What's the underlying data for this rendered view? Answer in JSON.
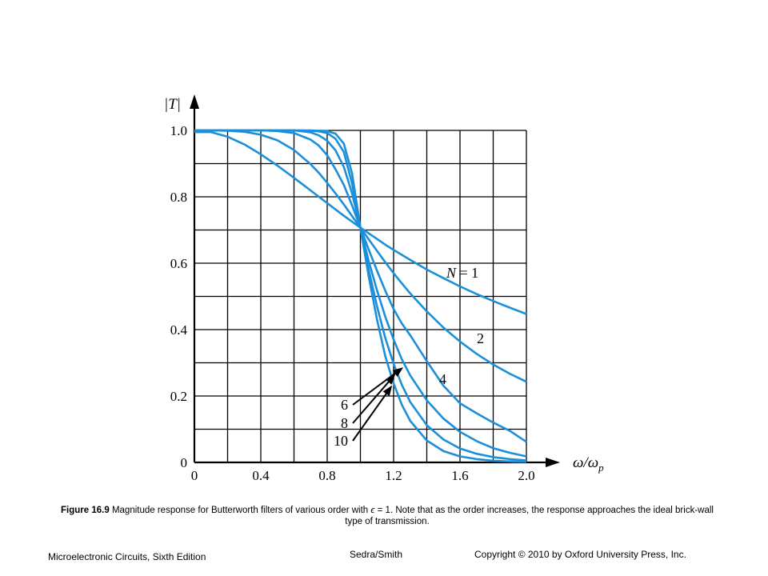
{
  "chart_data": {
    "type": "line",
    "x": [
      0,
      0.1,
      0.2,
      0.3,
      0.4,
      0.5,
      0.6,
      0.7,
      0.75,
      0.8,
      0.85,
      0.9,
      0.95,
      1.0,
      1.05,
      1.1,
      1.15,
      1.2,
      1.25,
      1.3,
      1.4,
      1.5,
      1.6,
      1.7,
      1.8,
      1.9,
      2.0
    ],
    "series": [
      {
        "name": "1",
        "values": [
          0.995,
          0.995,
          0.981,
          0.958,
          0.928,
          0.894,
          0.857,
          0.819,
          0.8,
          0.781,
          0.762,
          0.743,
          0.725,
          0.707,
          0.69,
          0.673,
          0.656,
          0.64,
          0.625,
          0.61,
          0.581,
          0.555,
          0.53,
          0.507,
          0.486,
          0.466,
          0.447
        ]
      },
      {
        "name": "2",
        "values": [
          1.0,
          1.0,
          0.999,
          0.996,
          0.987,
          0.97,
          0.941,
          0.898,
          0.872,
          0.842,
          0.81,
          0.777,
          0.742,
          0.707,
          0.672,
          0.637,
          0.603,
          0.57,
          0.539,
          0.509,
          0.455,
          0.406,
          0.364,
          0.327,
          0.295,
          0.267,
          0.243
        ]
      },
      {
        "name": "4",
        "values": [
          1.0,
          1.0,
          1.0,
          1.0,
          1.0,
          0.998,
          0.992,
          0.972,
          0.954,
          0.925,
          0.883,
          0.836,
          0.774,
          0.707,
          0.641,
          0.577,
          0.517,
          0.462,
          0.418,
          0.383,
          0.305,
          0.231,
          0.178,
          0.148,
          0.12,
          0.095,
          0.062
        ]
      },
      {
        "name": "6",
        "values": [
          1.0,
          1.0,
          1.0,
          1.0,
          1.0,
          1.0,
          1.0,
          0.994,
          0.985,
          0.969,
          0.94,
          0.89,
          0.81,
          0.707,
          0.606,
          0.518,
          0.439,
          0.37,
          0.31,
          0.262,
          0.187,
          0.132,
          0.092,
          0.064,
          0.043,
          0.029,
          0.018
        ]
      },
      {
        "name": "8",
        "values": [
          1.0,
          1.0,
          1.0,
          1.0,
          1.0,
          1.0,
          1.0,
          0.999,
          0.997,
          0.992,
          0.975,
          0.935,
          0.84,
          0.707,
          0.58,
          0.47,
          0.375,
          0.297,
          0.233,
          0.182,
          0.112,
          0.069,
          0.042,
          0.026,
          0.016,
          0.01,
          0.006
        ]
      },
      {
        "name": "10",
        "values": [
          1.0,
          1.0,
          1.0,
          1.0,
          1.0,
          1.0,
          1.0,
          1.0,
          0.999,
          0.998,
          0.99,
          0.96,
          0.87,
          0.707,
          0.56,
          0.43,
          0.32,
          0.238,
          0.173,
          0.125,
          0.066,
          0.034,
          0.018,
          0.01,
          0.005,
          0.003,
          0.002
        ]
      }
    ],
    "xlabel": "ω/ωp",
    "ylabel": "|T|",
    "xlim": [
      0,
      2.0
    ],
    "ylim": [
      0,
      1.0
    ],
    "xticks": [
      "0",
      "0.4",
      "0.8",
      "1.2",
      "1.6",
      "2.0"
    ],
    "xtick_values": [
      0,
      0.4,
      0.8,
      1.2,
      1.6,
      2.0
    ],
    "yticks": [
      "0",
      "0.2",
      "0.4",
      "0.6",
      "0.8",
      "1.0"
    ],
    "ytick_values": [
      0,
      0.2,
      0.4,
      0.6,
      0.8,
      1.0
    ],
    "grid": true,
    "grid_step_x": 0.2,
    "grid_step_y": 0.1,
    "curve_labels": [
      {
        "text": "N = 1",
        "series": "1"
      },
      {
        "text": "2",
        "series": "2"
      },
      {
        "text": "4",
        "series": "4"
      },
      {
        "text": "6",
        "series": "6"
      },
      {
        "text": "8",
        "series": "8"
      },
      {
        "text": "10",
        "series": "10"
      }
    ],
    "line_color": "#1b8fd9"
  },
  "caption": {
    "figure": "Figure 16.9",
    "text_part1": " Magnitude response for Butterworth filters of various order with ",
    "epsilon": "ϵ",
    "text_part2": " = 1. Note that as the order increases, the response approaches the ideal brick-wall type of transmission."
  },
  "footer": {
    "book": "Microelectronic Circuits, Sixth Edition",
    "authors": "Sedra/Smith",
    "copyright": "Copyright © 2010 by Oxford University Press, Inc."
  }
}
